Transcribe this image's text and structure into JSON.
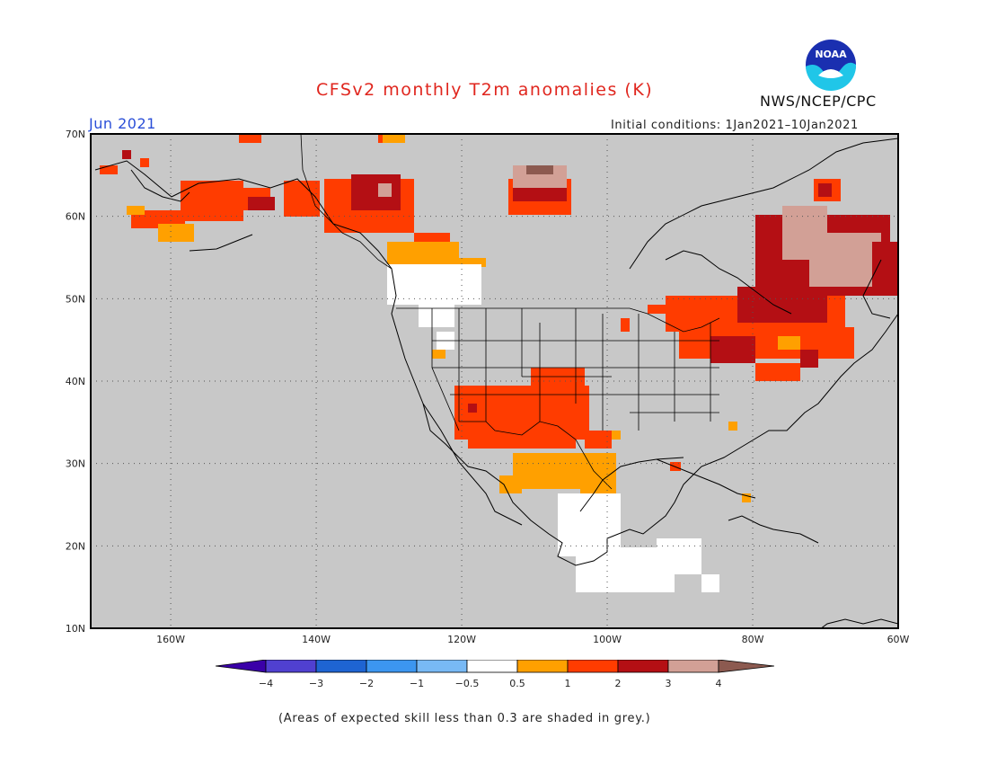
{
  "header": {
    "title": "CFSv2 monthly T2m anomalies (K)",
    "month": "Jun 2021",
    "initial_conditions": "Initial conditions: 1Jan2021–10Jan2021",
    "agency": "NWS/NCEP/CPC",
    "logo_text": "NOAA"
  },
  "map": {
    "lon_range": [
      -171,
      -60
    ],
    "lat_range": [
      10,
      70
    ],
    "lat_labels": [
      "70N",
      "60N",
      "50N",
      "40N",
      "30N",
      "20N",
      "10N"
    ],
    "lon_labels": [
      "160W",
      "140W",
      "120W",
      "100W",
      "80W",
      "60W"
    ],
    "background_color": "#c8c8c8",
    "categories": [
      {
        "range": "0.5 to 1",
        "color": "#ffa000"
      },
      {
        "range": "1 to 2",
        "color": "#ff3c00"
      },
      {
        "range": "2 to 3",
        "color": "#b40f14"
      },
      {
        "range": "3 to 4",
        "color": "#d2a096"
      },
      {
        "range": "> 4",
        "color": "#8c5a50"
      },
      {
        "range": "-0.5 to 0.5",
        "color": "#ffffff"
      }
    ]
  },
  "colorbar": {
    "labels": [
      "−4",
      "−3",
      "−2",
      "−1",
      "−0.5",
      "0.5",
      "1",
      "2",
      "3",
      "4"
    ],
    "colors": [
      "#3a00a8",
      "#5040d0",
      "#1e64d2",
      "#3c96f0",
      "#78b9f5",
      "#ffffff",
      "#ffa000",
      "#ff3c00",
      "#b40f14",
      "#d2a096",
      "#8c5a50"
    ]
  },
  "footnote": "(Areas of expected skill less than 0.3 are shaded in grey.)"
}
